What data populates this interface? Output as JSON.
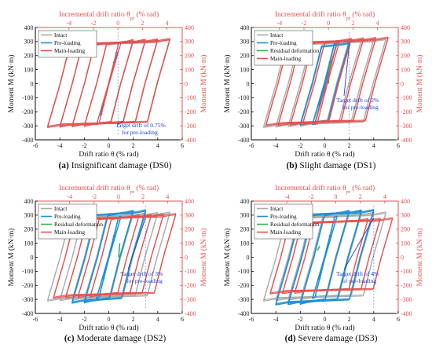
{
  "chart_data": [
    {
      "type": "line",
      "caption_tag": "(a)",
      "caption_text": "Insignificant damage (DS0)",
      "top_label": "Incremental drift ratio θ",
      "top_label_sub": "pr",
      "top_label_unit": " (% rad)",
      "xlabel": "Drift ratio θ (% rad)",
      "ylabel": "Moment M (kN·m)",
      "xlim": [
        -6,
        6
      ],
      "ylim": [
        -400,
        400
      ],
      "xticks": [
        -6,
        -4,
        -2,
        0,
        2,
        4,
        6
      ],
      "yticks": [
        -400,
        -300,
        -200,
        -100,
        0,
        100,
        200,
        300,
        400
      ],
      "top_ticks": [
        -4,
        -2,
        0,
        2,
        4
      ],
      "right_ticks": [
        -400,
        -300,
        -200,
        -100,
        0,
        100,
        200,
        300,
        400
      ],
      "top_offset": 0.75,
      "legend": [
        "Intact",
        "Pre-loading",
        "Main-loading"
      ],
      "legend_colors": [
        "#aaaaaa",
        "#1f8fd6",
        "#e8504f"
      ],
      "annotation": [
        "Target drift of 0.75%",
        "for pre-loading"
      ],
      "target_drift": 0.75,
      "series": [
        {
          "name": "Intact",
          "color": "#aaaaaa",
          "amplitudes": [
            0.5,
            1,
            2,
            3,
            4,
            5
          ],
          "Mmax": 305,
          "Mneg": -300
        },
        {
          "name": "Pre-loading",
          "color": "#1f8fd6",
          "amplitudes": [
            0.75
          ],
          "Mmax": 300,
          "Mneg": -300
        },
        {
          "name": "Main-loading",
          "color": "#e8504f",
          "amplitudes": [
            0.5,
            1,
            2,
            3,
            4,
            5
          ],
          "Mmax": 310,
          "Mneg": -300
        }
      ]
    },
    {
      "type": "line",
      "caption_tag": "(b)",
      "caption_text": "Slight damage (DS1)",
      "top_label": "Incremental drift ratio θ",
      "top_label_sub": "pr",
      "top_label_unit": " (% rad)",
      "xlabel": "Drift ratio θ (% rad)",
      "ylabel": "Moment M (kN·m)",
      "xlim": [
        -6,
        6
      ],
      "ylim": [
        -400,
        400
      ],
      "xticks": [
        -6,
        -4,
        -2,
        0,
        2,
        4,
        6
      ],
      "yticks": [
        -400,
        -300,
        -200,
        -100,
        0,
        100,
        200,
        300,
        400
      ],
      "top_ticks": [
        -4,
        -2,
        0,
        2,
        4
      ],
      "right_ticks": [
        -400,
        -300,
        -200,
        -100,
        0,
        100,
        200,
        300,
        400
      ],
      "top_offset": 0.3,
      "legend": [
        "Intact",
        "Pre-loading",
        "Residual deformation",
        "Main-loading"
      ],
      "legend_colors": [
        "#aaaaaa",
        "#1f8fd6",
        "#2fb84a",
        "#e8504f"
      ],
      "annotation": [
        "Target drift of 2%",
        "for pre-loading"
      ],
      "target_drift": 2,
      "series": [
        {
          "name": "Intact",
          "color": "#aaaaaa",
          "amplitudes": [
            0.5,
            1,
            2,
            3,
            4,
            5
          ],
          "Mmax": 310,
          "Mneg": -300
        },
        {
          "name": "Pre-loading",
          "color": "#1f8fd6",
          "amplitudes": [
            0.5,
            1,
            2
          ],
          "Mmax": 290,
          "Mneg": -290
        },
        {
          "name": "Residual deformation",
          "color": "#2fb84a",
          "points": [
            [
              0.3,
              0
            ],
            [
              0.4,
              150
            ]
          ]
        },
        {
          "name": "Main-loading",
          "color": "#e8504f",
          "amplitudes": [
            1,
            2,
            3,
            4,
            5
          ],
          "Mmax": 320,
          "Mneg": -290
        }
      ]
    },
    {
      "type": "line",
      "caption_tag": "(c)",
      "caption_text": "Moderate damage (DS2)",
      "top_label": "Incremental drift ratio θ",
      "top_label_sub": "pr",
      "top_label_unit": " (% rad)",
      "xlabel": "Drift ratio θ (% rad)",
      "ylabel": "Moment M (kN·m)",
      "xlim": [
        -6,
        6
      ],
      "ylim": [
        -400,
        400
      ],
      "xticks": [
        -6,
        -4,
        -2,
        0,
        2,
        4,
        6
      ],
      "yticks": [
        -400,
        -300,
        -200,
        -100,
        0,
        100,
        200,
        300,
        400
      ],
      "top_ticks": [
        -4,
        -2,
        0,
        2,
        4
      ],
      "right_ticks": [
        -400,
        -300,
        -200,
        -100,
        0,
        100,
        200,
        300,
        400
      ],
      "top_offset": 0.8,
      "legend": [
        "Intact",
        "Pre-loading",
        "Residual deformation",
        "Main-loading"
      ],
      "legend_colors": [
        "#aaaaaa",
        "#1f8fd6",
        "#2fb84a",
        "#e8504f"
      ],
      "annotation": [
        "Target drift of 3%",
        "for pre-loading"
      ],
      "target_drift": 3,
      "series": [
        {
          "name": "Intact",
          "color": "#aaaaaa",
          "amplitudes": [
            0.5,
            1,
            2,
            3,
            4,
            5
          ],
          "Mmax": 310,
          "Mneg": -300
        },
        {
          "name": "Pre-loading",
          "color": "#1f8fd6",
          "amplitudes": [
            0.5,
            1,
            2,
            3
          ],
          "Mmax": 330,
          "Mneg": -320
        },
        {
          "name": "Residual deformation",
          "color": "#2fb84a",
          "points": [
            [
              0.8,
              0
            ],
            [
              0.9,
              100
            ]
          ]
        },
        {
          "name": "Main-loading",
          "color": "#e8504f",
          "amplitudes": [
            2,
            3,
            4,
            5
          ],
          "Mmax": 300,
          "Mneg": -280
        }
      ]
    },
    {
      "type": "line",
      "caption_tag": "(d)",
      "caption_text": "Severe damage (DS3)",
      "top_label": "Incremental drift ratio θ",
      "top_label_sub": "pr",
      "top_label_unit": " (% rad)",
      "xlabel": "Drift ratio θ (% rad)",
      "ylabel": "Moment M (kN·m)",
      "xlim": [
        -6,
        6
      ],
      "ylim": [
        -400,
        400
      ],
      "xticks": [
        -6,
        -4,
        -2,
        0,
        2,
        4,
        6
      ],
      "yticks": [
        -400,
        -300,
        -200,
        -100,
        0,
        100,
        200,
        300,
        400
      ],
      "top_ticks": [
        -4,
        -2,
        0,
        2,
        4
      ],
      "right_ticks": [
        -400,
        -300,
        -200,
        -100,
        0,
        100,
        200,
        300,
        400
      ],
      "top_offset": 0.9,
      "legend": [
        "Intact",
        "Pre-loading",
        "Residual deformation",
        "Main-loading"
      ],
      "legend_colors": [
        "#aaaaaa",
        "#1f8fd6",
        "#2fb84a",
        "#e8504f"
      ],
      "annotation": [
        "Target drift of 4%",
        "of pre-loading"
      ],
      "target_drift": 4,
      "series": [
        {
          "name": "Intact",
          "color": "#aaaaaa",
          "amplitudes": [
            0.5,
            1,
            2,
            3,
            4,
            5
          ],
          "Mmax": 310,
          "Mneg": -300
        },
        {
          "name": "Pre-loading",
          "color": "#1f8fd6",
          "amplitudes": [
            0.5,
            1,
            2,
            3,
            4
          ],
          "Mmax": 330,
          "Mneg": -330
        },
        {
          "name": "Residual deformation",
          "color": "#2fb84a",
          "points": [
            [
              -0.6,
              50
            ],
            [
              -0.4,
              80
            ]
          ]
        },
        {
          "name": "Main-loading",
          "color": "#e8504f",
          "amplitudes": [
            3,
            4,
            5
          ],
          "Mmax": 270,
          "Mneg": -250
        }
      ]
    }
  ]
}
